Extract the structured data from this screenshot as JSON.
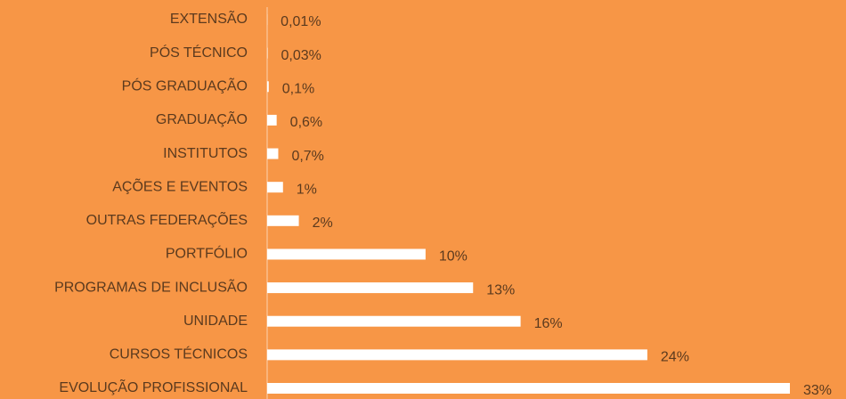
{
  "chart_data": {
    "type": "bar",
    "orientation": "horizontal",
    "color": "#ffffff",
    "categories": [
      "EXTENSÃO",
      "PÓS TÉCNICO",
      "PÓS GRADUAÇÃO",
      "GRADUAÇÃO",
      "INSTITUTOS",
      "AÇÕES E EVENTOS",
      "OUTRAS FEDERAÇÕES",
      "PORTFÓLIO",
      "PROGRAMAS DE INCLUSÃO",
      "UNIDADE",
      "CURSOS TÉCNICOS",
      "EVOLUÇÃO PROFISSIONAL"
    ],
    "values": [
      0.01,
      0.03,
      0.1,
      0.6,
      0.7,
      1,
      2,
      10,
      13,
      16,
      24,
      33
    ],
    "value_labels": [
      "0,01%",
      "0,03%",
      "0,1%",
      "0,6%",
      "0,7%",
      "1%",
      "2%",
      "10%",
      "13%",
      "16%",
      "24%",
      "33%"
    ]
  }
}
